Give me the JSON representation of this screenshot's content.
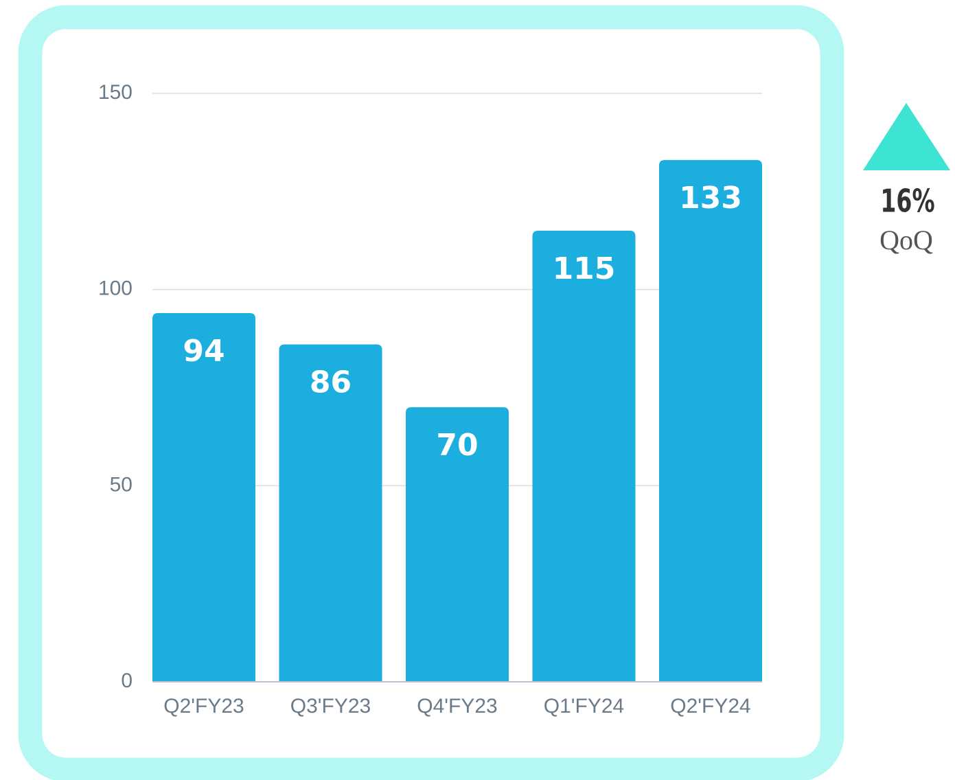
{
  "chart_data": {
    "type": "bar",
    "categories": [
      "Q2'FY23",
      "Q3'FY23",
      "Q4'FY23",
      "Q1'FY24",
      "Q2'FY24"
    ],
    "values": [
      94,
      86,
      70,
      115,
      133
    ],
    "color": "#1daee0",
    "ylim": [
      0,
      150
    ],
    "yticks": [
      0,
      50,
      100,
      150
    ],
    "grid": true,
    "annotation": {
      "label": "16%",
      "sublabel": "QoQ"
    }
  }
}
